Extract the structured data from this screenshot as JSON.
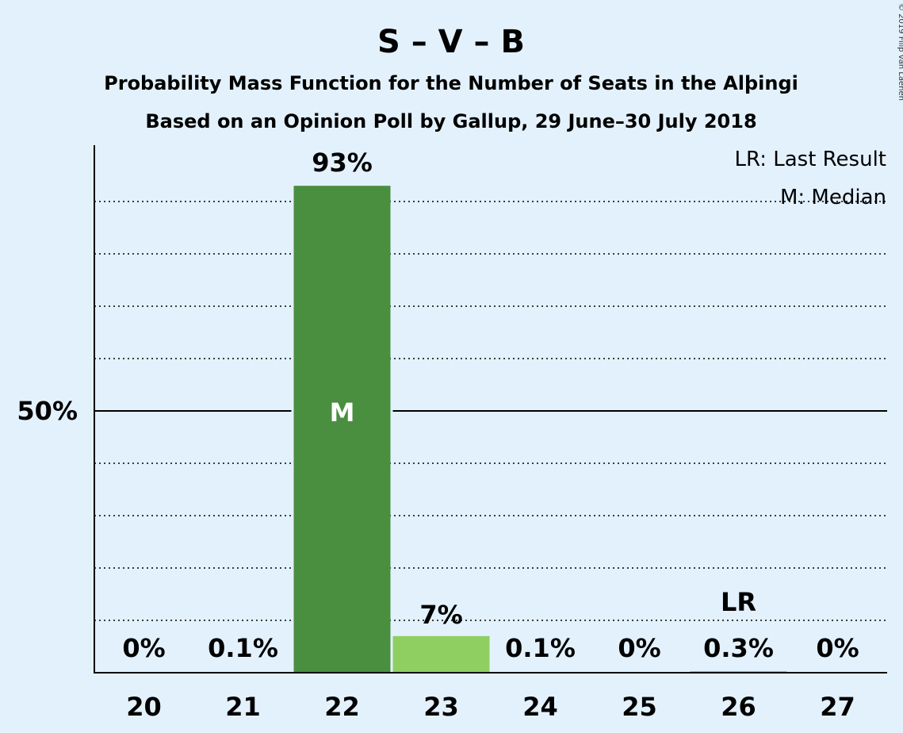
{
  "header": {
    "title": "S – V – B",
    "subtitle": "Probability Mass Function for the Number of Seats in the Alþingi",
    "subtitle2": "Based on an Opinion Poll by Gallup, 29 June–30 July 2018",
    "copyright": "© 2019 Filip van Laenen"
  },
  "legend": {
    "last_result": "LR: Last Result",
    "median": "M: Median"
  },
  "colors": {
    "median_bar": "#4a8e40",
    "other_bar": "#8fcf62",
    "background": "#e3f1fd"
  },
  "chart_data": {
    "type": "bar",
    "categories": [
      "20",
      "21",
      "22",
      "23",
      "24",
      "25",
      "26",
      "27"
    ],
    "values": [
      0,
      0.1,
      93,
      7,
      0.1,
      0,
      0.3,
      0
    ],
    "value_labels": [
      "0%",
      "0.1%",
      "93%",
      "7%",
      "0.1%",
      "0%",
      "0.3%",
      "0%"
    ],
    "ylim": [
      0,
      100
    ],
    "yticks": [
      {
        "value": 50,
        "label": "50%"
      }
    ],
    "minor_gridlines": [
      10,
      20,
      30,
      40,
      60,
      70,
      80,
      90
    ],
    "median_index": 2,
    "median_label": "M",
    "last_result_index": 6,
    "last_result_label": "LR",
    "xlabel": "",
    "ylabel": ""
  }
}
